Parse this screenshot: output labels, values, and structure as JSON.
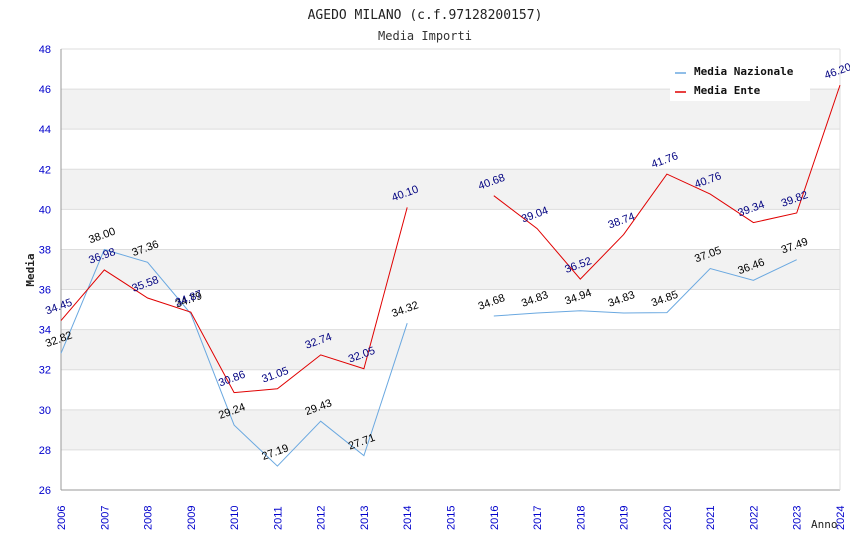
{
  "chart_data": {
    "type": "line",
    "title": "AGEDO MILANO (c.f.97128200157)",
    "subtitle": "Media Importi",
    "xlabel": "Anno",
    "ylabel": "Media",
    "ylim": [
      26,
      48
    ],
    "yticks": [
      26,
      28,
      30,
      32,
      34,
      36,
      38,
      40,
      42,
      44,
      46,
      48
    ],
    "categories": [
      "2006",
      "2007",
      "2008",
      "2009",
      "2010",
      "2011",
      "2012",
      "2013",
      "2014",
      "2015",
      "2016",
      "2017",
      "2018",
      "2019",
      "2020",
      "2021",
      "2022",
      "2023",
      "2024"
    ],
    "legend_position": "top-right",
    "colors": {
      "tick": "#0000cc",
      "band": "#f2f2f2",
      "grid": "#dddddd",
      "axis": "#999999"
    },
    "series": [
      {
        "name": "Media Nazionale",
        "color": "#6aa8e0",
        "label_color": "#000000",
        "values": [
          32.82,
          38.0,
          37.36,
          34.79,
          29.24,
          27.19,
          29.43,
          27.71,
          34.32,
          null,
          34.68,
          34.83,
          34.94,
          34.83,
          34.85,
          37.05,
          36.46,
          37.49,
          null
        ],
        "labels": [
          "32.82",
          "38.00",
          "37.36",
          "34.79",
          "29.24",
          "27.19",
          "29.43",
          "27.71",
          "34.32",
          "",
          "34.68",
          "34.83",
          "34.94",
          "34.83",
          "34.85",
          "37.05",
          "36.46",
          "37.49",
          ""
        ]
      },
      {
        "name": "Media Ente",
        "color": "#e00000",
        "label_color": "#000080",
        "values": [
          34.45,
          36.98,
          35.58,
          34.87,
          30.86,
          31.05,
          32.74,
          32.05,
          40.1,
          null,
          40.68,
          39.04,
          36.52,
          38.74,
          41.76,
          40.76,
          39.34,
          39.82,
          46.2
        ],
        "labels": [
          "34.45",
          "36.98",
          "35.58",
          "34.87",
          "30.86",
          "31.05",
          "32.74",
          "32.05",
          "40.10",
          "",
          "40.68",
          "39.04",
          "36.52",
          "38.74",
          "41.76",
          "40.76",
          "39.34",
          "39.82",
          "46.20"
        ]
      }
    ]
  }
}
